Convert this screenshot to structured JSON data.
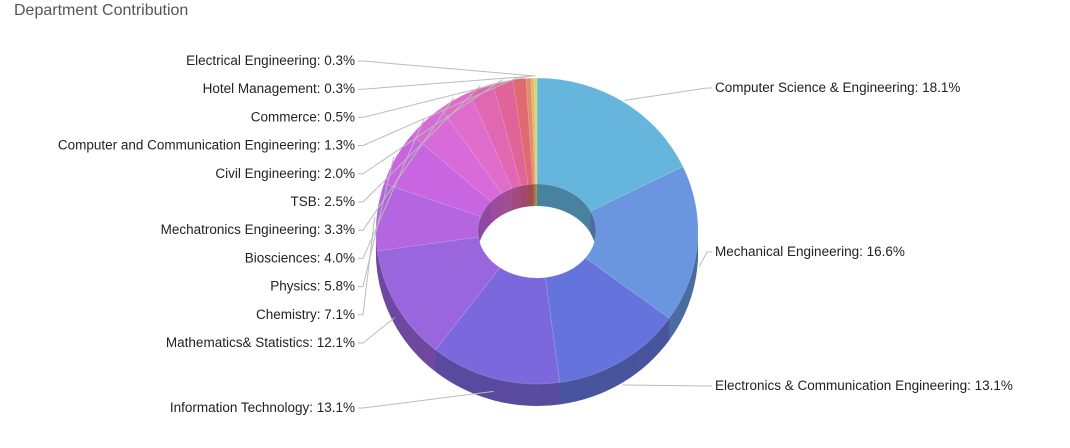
{
  "title": "Department Contribution",
  "chart_data": {
    "type": "pie",
    "title": "Department Contribution",
    "style": "3d-donut",
    "slices": [
      {
        "label": "Computer Science & Engineering",
        "value": 18.1,
        "color": "#66b5dd"
      },
      {
        "label": "Mechanical Engineering",
        "value": 16.6,
        "color": "#6a96e0"
      },
      {
        "label": "Electronics & Communication Engineering",
        "value": 13.1,
        "color": "#6574dc"
      },
      {
        "label": "Information Technology",
        "value": 13.1,
        "color": "#7b68dd"
      },
      {
        "label": "Mathematics& Statistics",
        "value": 12.1,
        "color": "#9a66de"
      },
      {
        "label": "Chemistry",
        "value": 7.1,
        "color": "#b466e0"
      },
      {
        "label": "Physics",
        "value": 5.8,
        "color": "#c766e0"
      },
      {
        "label": "Biosciences",
        "value": 4.0,
        "color": "#d96ad9"
      },
      {
        "label": "Mechatronics Engineering",
        "value": 3.3,
        "color": "#e06ccc"
      },
      {
        "label": "TSB",
        "value": 2.5,
        "color": "#e068b3"
      },
      {
        "label": "Civil Engineering",
        "value": 2.0,
        "color": "#e06499"
      },
      {
        "label": "Computer and Communication Engineering",
        "value": 1.3,
        "color": "#e06a70"
      },
      {
        "label": "Commerce",
        "value": 0.5,
        "color": "#e08f6a"
      },
      {
        "label": "Hotel Management",
        "value": 0.3,
        "color": "#e0b86a"
      },
      {
        "label": "Electrical Engineering",
        "value": 0.3,
        "color": "#d8d86a"
      }
    ],
    "label_format": "{label}: {value}%"
  }
}
